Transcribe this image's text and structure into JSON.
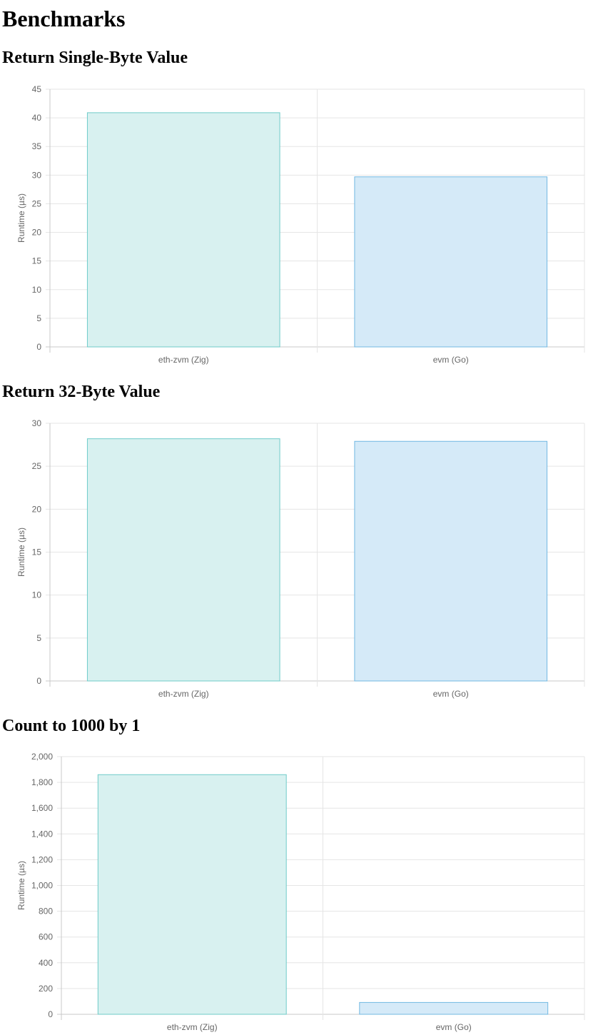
{
  "page": {
    "title": "Benchmarks"
  },
  "colors": {
    "zig_fill": "#d8f1f0",
    "zig_stroke": "#6fcbc9",
    "go_fill": "#d5eaf8",
    "go_stroke": "#72b8e2",
    "grid": "#e5e5e5",
    "axis": "#c8c8c8",
    "tick_text": "#666666"
  },
  "chart_data": [
    {
      "type": "bar",
      "title": "Return Single-Byte Value",
      "ylabel": "Runtime (µs)",
      "xlabel": "",
      "categories": [
        "eth-zvm (Zig)",
        "evm (Go)"
      ],
      "values": [
        40.9,
        29.7
      ],
      "ylim": [
        0,
        45
      ],
      "yticks": [
        0,
        5,
        10,
        15,
        20,
        25,
        30,
        35,
        40,
        45
      ],
      "ytick_labels": [
        "0",
        "5",
        "10",
        "15",
        "20",
        "25",
        "30",
        "35",
        "40",
        "45"
      ],
      "grid": true,
      "legend": "none"
    },
    {
      "type": "bar",
      "title": "Return 32-Byte Value",
      "ylabel": "Runtime (µs)",
      "xlabel": "",
      "categories": [
        "eth-zvm (Zig)",
        "evm (Go)"
      ],
      "values": [
        28.2,
        27.9
      ],
      "ylim": [
        0,
        30
      ],
      "yticks": [
        0,
        5,
        10,
        15,
        20,
        25,
        30
      ],
      "ytick_labels": [
        "0",
        "5",
        "10",
        "15",
        "20",
        "25",
        "30"
      ],
      "grid": true,
      "legend": "none"
    },
    {
      "type": "bar",
      "title": "Count to 1000 by 1",
      "ylabel": "Runtime (µs)",
      "xlabel": "",
      "categories": [
        "eth-zvm (Zig)",
        "evm (Go)"
      ],
      "values": [
        1860,
        92
      ],
      "ylim": [
        0,
        2000
      ],
      "yticks": [
        0,
        200,
        400,
        600,
        800,
        1000,
        1200,
        1400,
        1600,
        1800,
        2000
      ],
      "ytick_labels": [
        "0",
        "200",
        "400",
        "600",
        "800",
        "1,000",
        "1,200",
        "1,400",
        "1,600",
        "1,800",
        "2,000"
      ],
      "grid": true,
      "legend": "none"
    }
  ]
}
